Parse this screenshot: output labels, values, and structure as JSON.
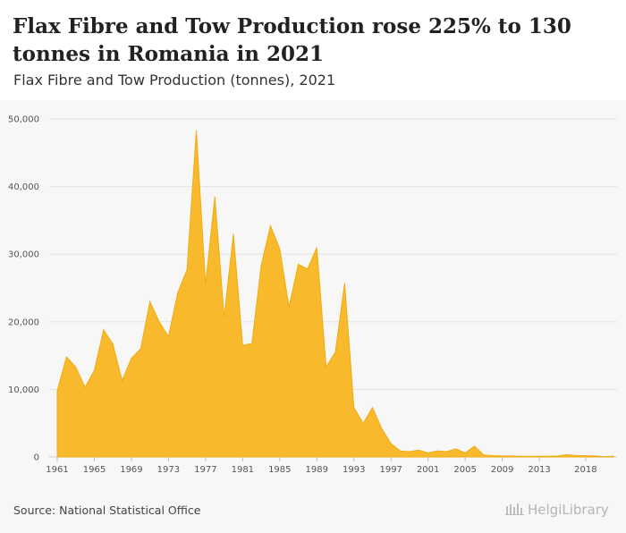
{
  "header": {
    "title": "Flax Fibre and Tow Production rose 225% to 130 tonnes in Romania in 2021",
    "subtitle": "Flax Fibre and Tow Production (tonnes), 2021"
  },
  "footer": {
    "source": "Source: National Statistical Office",
    "logo_text": "HelgiLibrary"
  },
  "colors": {
    "area_fill": "#f9b92c",
    "area_stroke": "#eead13",
    "grid": "#e3e3e3",
    "tick_text": "#555555",
    "plot_background": "#f7f7f7"
  },
  "chart_data": {
    "type": "area",
    "x": [
      1961,
      1962,
      1963,
      1964,
      1965,
      1966,
      1967,
      1968,
      1969,
      1970,
      1971,
      1972,
      1973,
      1974,
      1975,
      1976,
      1977,
      1978,
      1979,
      1980,
      1981,
      1982,
      1983,
      1984,
      1985,
      1986,
      1987,
      1988,
      1989,
      1990,
      1991,
      1992,
      1993,
      1994,
      1995,
      1996,
      1997,
      1998,
      1999,
      2000,
      2001,
      2002,
      2003,
      2004,
      2005,
      2006,
      2007,
      2008,
      2009,
      2010,
      2011,
      2012,
      2013,
      2014,
      2015,
      2016,
      2017,
      2018,
      2019,
      2020,
      2021
    ],
    "series": [
      {
        "values": [
          9800,
          14800,
          13300,
          10300,
          12800,
          18800,
          16700,
          11300,
          14600,
          16000,
          23000,
          20000,
          17800,
          24300,
          27700,
          48300,
          25500,
          38500,
          20700,
          33000,
          16500,
          16800,
          28300,
          34200,
          30800,
          22200,
          28500,
          27800,
          31000,
          13300,
          15500,
          25700,
          7300,
          5000,
          7300,
          4200,
          2000,
          900,
          800,
          1000,
          600,
          900,
          800,
          1200,
          600,
          1600,
          300,
          200,
          150,
          150,
          100,
          100,
          100,
          100,
          150,
          350,
          200,
          200,
          150,
          40,
          130
        ]
      }
    ],
    "xticks": [
      "1961",
      "1965",
      "1969",
      "1973",
      "1977",
      "1981",
      "1985",
      "1989",
      "1993",
      "1997",
      "2001",
      "2005",
      "2009",
      "2013",
      "2018"
    ],
    "yticks": [
      "0",
      "10,000",
      "20,000",
      "30,000",
      "40,000",
      "50,000"
    ],
    "ylim": [
      0,
      50000
    ],
    "xlim": [
      1961,
      2021
    ],
    "grid": true,
    "legend": "none"
  }
}
